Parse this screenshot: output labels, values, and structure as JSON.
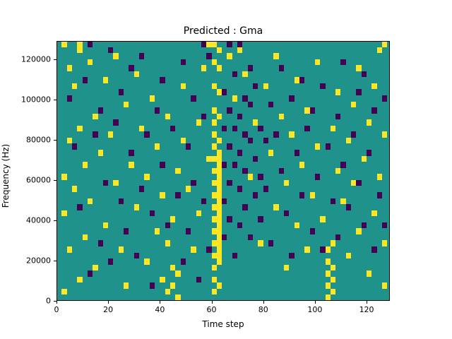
{
  "chart_data": {
    "type": "heatmap",
    "title": "Predicted : Gma",
    "xlabel": "Time step",
    "ylabel": "Frequency (Hz)",
    "xlim": [
      0,
      129
    ],
    "ylim": [
      0,
      129000
    ],
    "xticks": [
      0,
      20,
      40,
      60,
      80,
      100,
      120
    ],
    "yticks": [
      0,
      20000,
      40000,
      60000,
      80000,
      100000,
      120000
    ],
    "legend": "none",
    "grid": false,
    "colors": {
      "background": "#20928c",
      "low": "#440154",
      "high": "#fde725"
    },
    "cell_size": {
      "w_timesteps": 2,
      "h_hz": 3000
    },
    "cells": {
      "yellow": [
        [
          2,
          1
        ],
        [
          2,
          14
        ],
        [
          2,
          20
        ],
        [
          2,
          42
        ],
        [
          4,
          38
        ],
        [
          4,
          26
        ],
        [
          4,
          8
        ],
        [
          6,
          35
        ],
        [
          6,
          18
        ],
        [
          8,
          41
        ],
        [
          8,
          28
        ],
        [
          8,
          3
        ],
        [
          8,
          42
        ],
        [
          10,
          22
        ],
        [
          10,
          10
        ],
        [
          12,
          39
        ],
        [
          12,
          16
        ],
        [
          14,
          30
        ],
        [
          14,
          5
        ],
        [
          16,
          24
        ],
        [
          18,
          36
        ],
        [
          18,
          12
        ],
        [
          20,
          27
        ],
        [
          22,
          19
        ],
        [
          22,
          40
        ],
        [
          24,
          8
        ],
        [
          26,
          32
        ],
        [
          26,
          2
        ],
        [
          28,
          22
        ],
        [
          30,
          15
        ],
        [
          30,
          37
        ],
        [
          32,
          28
        ],
        [
          34,
          6
        ],
        [
          34,
          20
        ],
        [
          36,
          33
        ],
        [
          38,
          11
        ],
        [
          38,
          25
        ],
        [
          40,
          3
        ],
        [
          40,
          17
        ],
        [
          42,
          1
        ],
        [
          42,
          9
        ],
        [
          42,
          30
        ],
        [
          44,
          2
        ],
        [
          44,
          5
        ],
        [
          44,
          13
        ],
        [
          46,
          4
        ],
        [
          46,
          21
        ],
        [
          46,
          0
        ],
        [
          48,
          26
        ],
        [
          48,
          35
        ],
        [
          50,
          18
        ],
        [
          52,
          8
        ],
        [
          54,
          29
        ],
        [
          54,
          14
        ],
        [
          56,
          38
        ],
        [
          58,
          23
        ],
        [
          58,
          42
        ],
        [
          60,
          1
        ],
        [
          60,
          3
        ],
        [
          60,
          5
        ],
        [
          60,
          7
        ],
        [
          60,
          9
        ],
        [
          60,
          11
        ],
        [
          60,
          13
        ],
        [
          60,
          15
        ],
        [
          60,
          17
        ],
        [
          60,
          19
        ],
        [
          60,
          21
        ],
        [
          60,
          23
        ],
        [
          60,
          25
        ],
        [
          60,
          27
        ],
        [
          60,
          29
        ],
        [
          60,
          31
        ],
        [
          60,
          35
        ],
        [
          60,
          39
        ],
        [
          60,
          42
        ],
        [
          62,
          2
        ],
        [
          62,
          6
        ],
        [
          62,
          7
        ],
        [
          62,
          8
        ],
        [
          62,
          9
        ],
        [
          62,
          10
        ],
        [
          62,
          11
        ],
        [
          62,
          12
        ],
        [
          62,
          13
        ],
        [
          62,
          14
        ],
        [
          62,
          15
        ],
        [
          62,
          16
        ],
        [
          62,
          17
        ],
        [
          62,
          18
        ],
        [
          62,
          19
        ],
        [
          62,
          20
        ],
        [
          62,
          21
        ],
        [
          62,
          22
        ],
        [
          62,
          23
        ],
        [
          62,
          24
        ],
        [
          62,
          26
        ],
        [
          62,
          30
        ],
        [
          62,
          34
        ],
        [
          62,
          38
        ],
        [
          62,
          41
        ],
        [
          66,
          40
        ],
        [
          68,
          33
        ],
        [
          70,
          41
        ],
        [
          72,
          37
        ],
        [
          74,
          20
        ],
        [
          76,
          29
        ],
        [
          78,
          9
        ],
        [
          80,
          35
        ],
        [
          82,
          24
        ],
        [
          84,
          15
        ],
        [
          84,
          40
        ],
        [
          86,
          30
        ],
        [
          88,
          19
        ],
        [
          88,
          5
        ],
        [
          90,
          27
        ],
        [
          92,
          36
        ],
        [
          92,
          12
        ],
        [
          94,
          22
        ],
        [
          96,
          8
        ],
        [
          96,
          31
        ],
        [
          98,
          17
        ],
        [
          100,
          25
        ],
        [
          100,
          39
        ],
        [
          102,
          13
        ],
        [
          104,
          0
        ],
        [
          104,
          2
        ],
        [
          104,
          4
        ],
        [
          104,
          6
        ],
        [
          104,
          8
        ],
        [
          106,
          1
        ],
        [
          106,
          3
        ],
        [
          106,
          5
        ],
        [
          106,
          9
        ],
        [
          106,
          28
        ],
        [
          108,
          21
        ],
        [
          108,
          34
        ],
        [
          110,
          16
        ],
        [
          112,
          26
        ],
        [
          112,
          7
        ],
        [
          114,
          32
        ],
        [
          114,
          19
        ],
        [
          116,
          11
        ],
        [
          116,
          38
        ],
        [
          118,
          23
        ],
        [
          120,
          29
        ],
        [
          120,
          4
        ],
        [
          122,
          35
        ],
        [
          122,
          14
        ],
        [
          124,
          20
        ],
        [
          124,
          41
        ],
        [
          126,
          9
        ],
        [
          126,
          27
        ],
        [
          126,
          2
        ],
        [
          126,
          42
        ]
      ],
      "purple": [
        [
          4,
          33
        ],
        [
          6,
          25
        ],
        [
          8,
          15
        ],
        [
          10,
          36
        ],
        [
          12,
          4
        ],
        [
          12,
          42
        ],
        [
          14,
          27
        ],
        [
          16,
          9
        ],
        [
          16,
          31
        ],
        [
          18,
          19
        ],
        [
          20,
          41
        ],
        [
          20,
          6
        ],
        [
          22,
          29
        ],
        [
          24,
          16
        ],
        [
          24,
          34
        ],
        [
          26,
          11
        ],
        [
          28,
          38
        ],
        [
          28,
          24
        ],
        [
          30,
          7
        ],
        [
          32,
          18
        ],
        [
          32,
          40
        ],
        [
          34,
          27
        ],
        [
          36,
          14
        ],
        [
          36,
          2
        ],
        [
          38,
          31
        ],
        [
          40,
          22
        ],
        [
          40,
          36
        ],
        [
          42,
          12
        ],
        [
          44,
          28
        ],
        [
          46,
          17
        ],
        [
          48,
          6
        ],
        [
          48,
          39
        ],
        [
          50,
          25
        ],
        [
          50,
          11
        ],
        [
          52,
          33
        ],
        [
          52,
          19
        ],
        [
          54,
          3
        ],
        [
          56,
          30
        ],
        [
          56,
          16
        ],
        [
          56,
          42
        ],
        [
          58,
          40
        ],
        [
          58,
          8
        ],
        [
          64,
          28
        ],
        [
          64,
          22
        ],
        [
          64,
          16
        ],
        [
          64,
          34
        ],
        [
          64,
          10
        ],
        [
          66,
          25
        ],
        [
          66,
          19
        ],
        [
          66,
          31
        ],
        [
          66,
          13
        ],
        [
          66,
          42
        ],
        [
          68,
          28
        ],
        [
          68,
          22
        ],
        [
          68,
          37
        ],
        [
          68,
          7
        ],
        [
          70,
          24
        ],
        [
          70,
          18
        ],
        [
          70,
          30
        ],
        [
          70,
          12
        ],
        [
          70,
          42
        ],
        [
          72,
          27
        ],
        [
          72,
          21
        ],
        [
          72,
          33
        ],
        [
          72,
          15
        ],
        [
          74,
          26
        ],
        [
          74,
          32
        ],
        [
          74,
          10
        ],
        [
          74,
          38
        ],
        [
          76,
          23
        ],
        [
          76,
          17
        ],
        [
          76,
          35
        ],
        [
          78,
          28
        ],
        [
          78,
          20
        ],
        [
          78,
          13
        ],
        [
          80,
          26
        ],
        [
          80,
          18
        ],
        [
          82,
          32
        ],
        [
          82,
          9
        ],
        [
          84,
          27
        ],
        [
          86,
          21
        ],
        [
          86,
          38
        ],
        [
          88,
          14
        ],
        [
          90,
          33
        ],
        [
          90,
          7
        ],
        [
          92,
          24
        ],
        [
          94,
          17
        ],
        [
          94,
          36
        ],
        [
          96,
          28
        ],
        [
          98,
          11
        ],
        [
          98,
          31
        ],
        [
          100,
          20
        ],
        [
          102,
          35
        ],
        [
          102,
          8
        ],
        [
          104,
          25
        ],
        [
          106,
          16
        ],
        [
          108,
          30
        ],
        [
          108,
          10
        ],
        [
          110,
          22
        ],
        [
          110,
          39
        ],
        [
          112,
          15
        ],
        [
          114,
          27
        ],
        [
          116,
          19
        ],
        [
          116,
          34
        ],
        [
          118,
          12
        ],
        [
          118,
          37
        ],
        [
          120,
          24
        ],
        [
          122,
          8
        ],
        [
          122,
          31
        ],
        [
          124,
          17
        ],
        [
          126,
          33
        ],
        [
          126,
          12
        ]
      ]
    }
  }
}
